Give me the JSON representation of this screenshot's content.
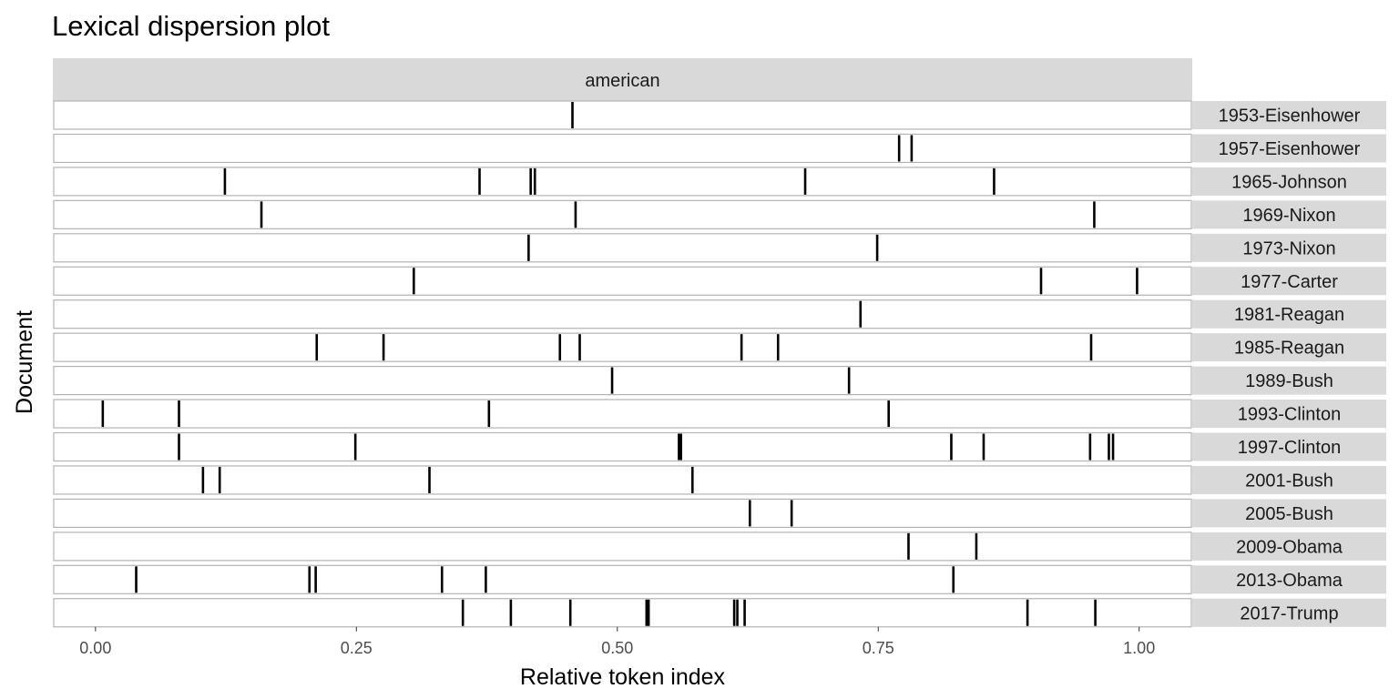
{
  "chart_data": {
    "type": "dispersion",
    "title": "Lexical dispersion plot",
    "facet_label": "american",
    "xlabel": "Relative token index",
    "ylabel": "Document",
    "xlim": [
      -0.04,
      1.05
    ],
    "x_ticks": [
      0.0,
      0.25,
      0.5,
      0.75,
      1.0
    ],
    "x_tick_labels": [
      "0.00",
      "0.25",
      "0.50",
      "0.75",
      "1.00"
    ],
    "grid": false,
    "documents": [
      {
        "name": "1953-Eisenhower",
        "positions": [
          0.457
        ]
      },
      {
        "name": "1957-Eisenhower",
        "positions": [
          0.77,
          0.782
        ]
      },
      {
        "name": "1965-Johnson",
        "positions": [
          0.124,
          0.368,
          0.417,
          0.421,
          0.68,
          0.861
        ]
      },
      {
        "name": "1969-Nixon",
        "positions": [
          0.159,
          0.46,
          0.957
        ]
      },
      {
        "name": "1973-Nixon",
        "positions": [
          0.415,
          0.749
        ]
      },
      {
        "name": "1977-Carter",
        "positions": [
          0.305,
          0.906,
          0.998
        ]
      },
      {
        "name": "1981-Reagan",
        "positions": [
          0.733
        ]
      },
      {
        "name": "1985-Reagan",
        "positions": [
          0.212,
          0.276,
          0.445,
          0.464,
          0.619,
          0.654,
          0.954
        ]
      },
      {
        "name": "1989-Bush",
        "positions": [
          0.495,
          0.722
        ]
      },
      {
        "name": "1993-Clinton",
        "positions": [
          0.007,
          0.08,
          0.377,
          0.76
        ]
      },
      {
        "name": "1997-Clinton",
        "positions": [
          0.08,
          0.249,
          0.559,
          0.561,
          0.82,
          0.851,
          0.953,
          0.971,
          0.975
        ]
      },
      {
        "name": "2001-Bush",
        "positions": [
          0.103,
          0.119,
          0.32,
          0.572
        ]
      },
      {
        "name": "2005-Bush",
        "positions": [
          0.627,
          0.667
        ]
      },
      {
        "name": "2009-Obama",
        "positions": [
          0.779,
          0.844
        ]
      },
      {
        "name": "2013-Obama",
        "positions": [
          0.039,
          0.205,
          0.211,
          0.332,
          0.374,
          0.822
        ]
      },
      {
        "name": "2017-Trump",
        "positions": [
          0.352,
          0.398,
          0.455,
          0.528,
          0.53,
          0.612,
          0.615,
          0.622,
          0.893,
          0.958
        ]
      }
    ]
  }
}
